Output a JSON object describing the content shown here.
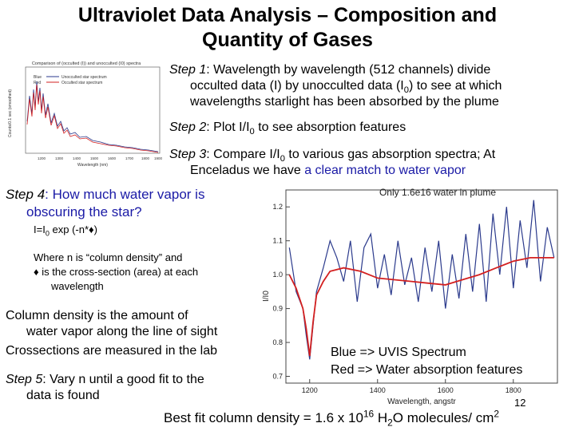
{
  "title_line1": "Ultraviolet Data Analysis – Composition and",
  "title_line2": "Quantity of Gases",
  "step1": {
    "label": "Step 1",
    "text_a": ":  Wavelength by wavelength (512 channels) divide",
    "text_b": "occulted data (I) by unocculted data (I",
    "text_sub": "0",
    "text_c": ") to see at which",
    "text_d": "wavelengths starlight has been absorbed by the plume"
  },
  "step2": {
    "label": "Step 2",
    "text_a": ":  Plot I/I",
    "text_sub": "0",
    "text_b": " to see absorption features"
  },
  "step3": {
    "label": "Step 3",
    "text_a": ":  Compare I/I",
    "text_sub": "0",
    "text_b": " to various gas absorption spectra;  At",
    "text_c": "Enceladus we have ",
    "highlight": "a clear match to water vapor"
  },
  "step4": {
    "label": "Step 4",
    "text_a": ":  How much water vapor is",
    "text_b": "obscuring the star?"
  },
  "formula": {
    "a": "I=I",
    "sub": "0",
    "b": " exp (-n*",
    "sym": "♦",
    "c": ")"
  },
  "definition": {
    "line1": "Where n is “column density” and",
    "sym": "♦",
    "line2": " is the cross-section (area) at each",
    "line3": "wavelength"
  },
  "column_density": {
    "line1": "Column density is the amount of",
    "line2": "water vapor along the line of sight"
  },
  "crossections": "Crossections are measured in the lab",
  "step5": {
    "label": "Step 5",
    "text_a": ":  Vary n until a good fit to the",
    "text_b": "data is found"
  },
  "legend": {
    "blue_line": "Blue => UVIS Spectrum",
    "red_line": "Red => Water absorption features"
  },
  "page_number": "12",
  "bottom": {
    "a": "Best fit column density = 1.6 x 10",
    "sup16": "16",
    "b": " H",
    "sub2": "2",
    "c": "O molecules/ cm",
    "sup2": "2"
  },
  "small_chart": {
    "title": "Comparison of (occulted (I)) and unocculted (I0) spectra",
    "ylabel": "Counts/0.1 sec (smoothed)",
    "xlabel": "Wavelength (nm)",
    "legend": [
      {
        "color": "Blue",
        "label": "Unocculted star spectrum"
      },
      {
        "color": "Red",
        "label": "Occulted star spectrum"
      }
    ],
    "xticks": [
      "1200",
      "1300",
      "1400",
      "1500",
      "1600",
      "1700",
      "1800",
      "1900"
    ]
  },
  "chart_data": {
    "type": "line",
    "title": "Only 1.6e16 water in plume",
    "xlabel": "Wavelength, angstr",
    "ylabel": "I/I0",
    "xlim": [
      1130,
      1930
    ],
    "ylim": [
      0.68,
      1.25
    ],
    "xticks": [
      "1200",
      "1400",
      "1600",
      "1800"
    ],
    "yticks": [
      "1.2",
      "1.1",
      "1.0",
      "0.9",
      "0.8",
      "0.7"
    ],
    "series": [
      {
        "name": "UVIS Spectrum",
        "color": "#2b3a8c",
        "x": [
          1140,
          1160,
          1180,
          1190,
          1200,
          1210,
          1220,
          1240,
          1260,
          1280,
          1300,
          1320,
          1340,
          1360,
          1380,
          1400,
          1420,
          1440,
          1460,
          1480,
          1500,
          1520,
          1540,
          1560,
          1580,
          1600,
          1620,
          1640,
          1660,
          1680,
          1700,
          1720,
          1740,
          1760,
          1780,
          1800,
          1820,
          1840,
          1860,
          1880,
          1900,
          1920
        ],
        "y": [
          1.08,
          0.95,
          0.9,
          0.82,
          0.75,
          0.85,
          0.95,
          1.02,
          1.1,
          1.05,
          0.98,
          1.1,
          0.92,
          1.08,
          1.12,
          0.96,
          1.06,
          0.94,
          1.1,
          0.97,
          1.05,
          0.92,
          1.08,
          0.95,
          1.1,
          0.9,
          1.06,
          0.93,
          1.12,
          0.95,
          1.15,
          0.92,
          1.18,
          1.0,
          1.2,
          0.96,
          1.16,
          1.02,
          1.22,
          0.98,
          1.14,
          1.05
        ]
      },
      {
        "name": "Water absorption features",
        "color": "#d32020",
        "x": [
          1140,
          1160,
          1180,
          1190,
          1200,
          1210,
          1220,
          1240,
          1260,
          1300,
          1350,
          1400,
          1450,
          1500,
          1550,
          1600,
          1650,
          1700,
          1750,
          1800,
          1850,
          1900,
          1920
        ],
        "y": [
          1.0,
          0.96,
          0.9,
          0.84,
          0.76,
          0.86,
          0.94,
          0.98,
          1.01,
          1.02,
          1.01,
          0.99,
          0.985,
          0.98,
          0.975,
          0.97,
          0.985,
          1.0,
          1.02,
          1.04,
          1.05,
          1.05,
          1.05
        ]
      }
    ]
  }
}
